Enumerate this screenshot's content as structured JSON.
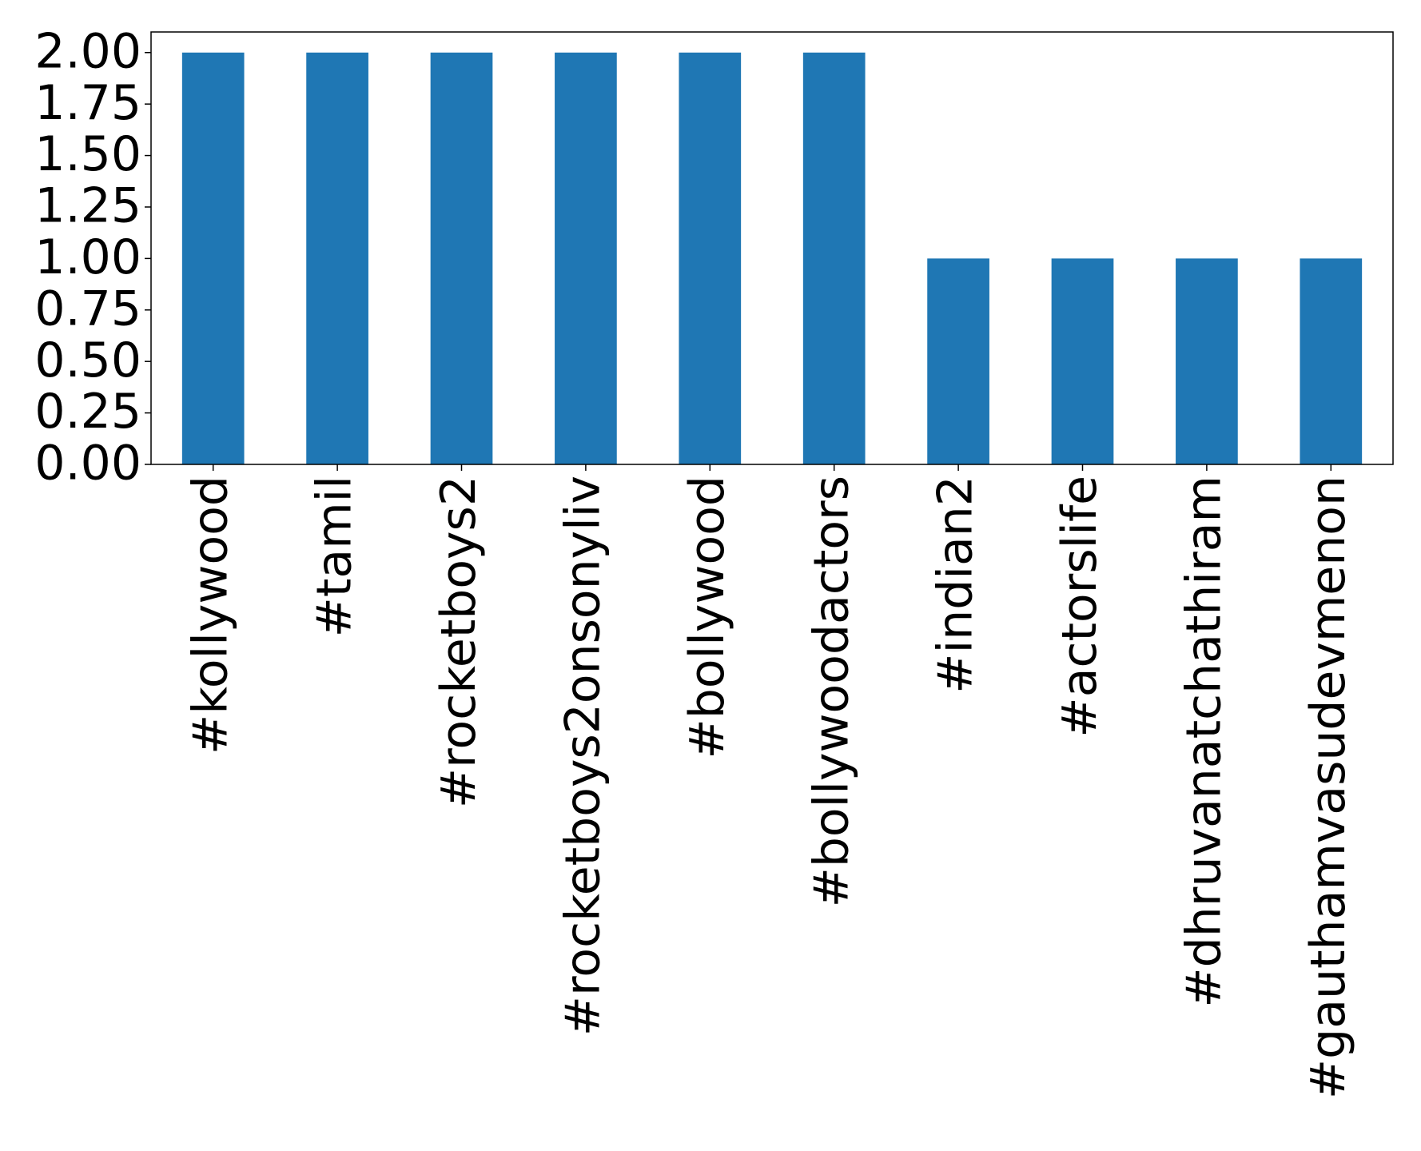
{
  "chart_data": {
    "type": "bar",
    "categories": [
      "#kollywood",
      "#tamil",
      "#rocketboys2",
      "#rocketboys2onsonyliv",
      "#bollywood",
      "#bollywoodactors",
      "#indian2",
      "#actorslife",
      "#dhruvanatchathiram",
      "#gauthamvasudevmenon"
    ],
    "values": [
      2,
      2,
      2,
      2,
      2,
      2,
      1,
      1,
      1,
      1
    ],
    "color": "#1f77b4",
    "ylim": [
      0,
      2.1
    ],
    "yticks": [
      {
        "value": 0,
        "label": "0.00"
      },
      {
        "value": 0.25,
        "label": "0.25"
      },
      {
        "value": 0.5,
        "label": "0.50"
      },
      {
        "value": 0.75,
        "label": "0.75"
      },
      {
        "value": 1,
        "label": "1.00"
      },
      {
        "value": 1.25,
        "label": "1.25"
      },
      {
        "value": 1.5,
        "label": "1.50"
      },
      {
        "value": 1.75,
        "label": "1.75"
      },
      {
        "value": 2,
        "label": "2.00"
      }
    ],
    "grid": false
  }
}
